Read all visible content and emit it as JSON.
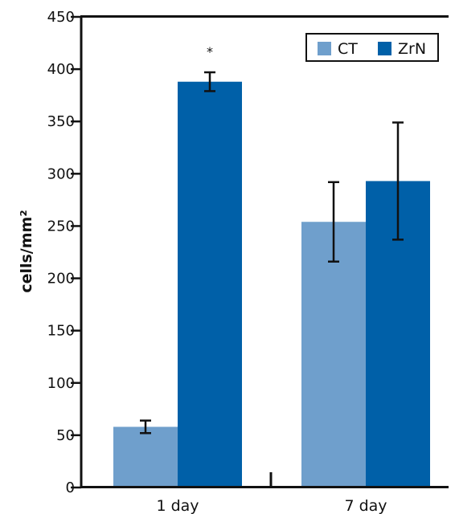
{
  "chart_data": {
    "type": "bar",
    "title": "",
    "xlabel": "",
    "ylabel": "cells/mm²",
    "ylim": [
      0,
      450
    ],
    "yticks": [
      0,
      50,
      100,
      150,
      200,
      250,
      300,
      350,
      400,
      450
    ],
    "categories": [
      "1 day",
      "7 day"
    ],
    "series": [
      {
        "name": "CT",
        "color": "#6f9fcc",
        "values": [
          58,
          254
        ],
        "errors": [
          6,
          38
        ]
      },
      {
        "name": "ZrN",
        "color": "#0060a8",
        "values": [
          388,
          293
        ],
        "errors": [
          9,
          56
        ]
      }
    ],
    "annotations": [
      {
        "text": "*",
        "category": "1 day",
        "series": "ZrN"
      }
    ],
    "legend": {
      "position": "top-right"
    },
    "grid": false
  }
}
